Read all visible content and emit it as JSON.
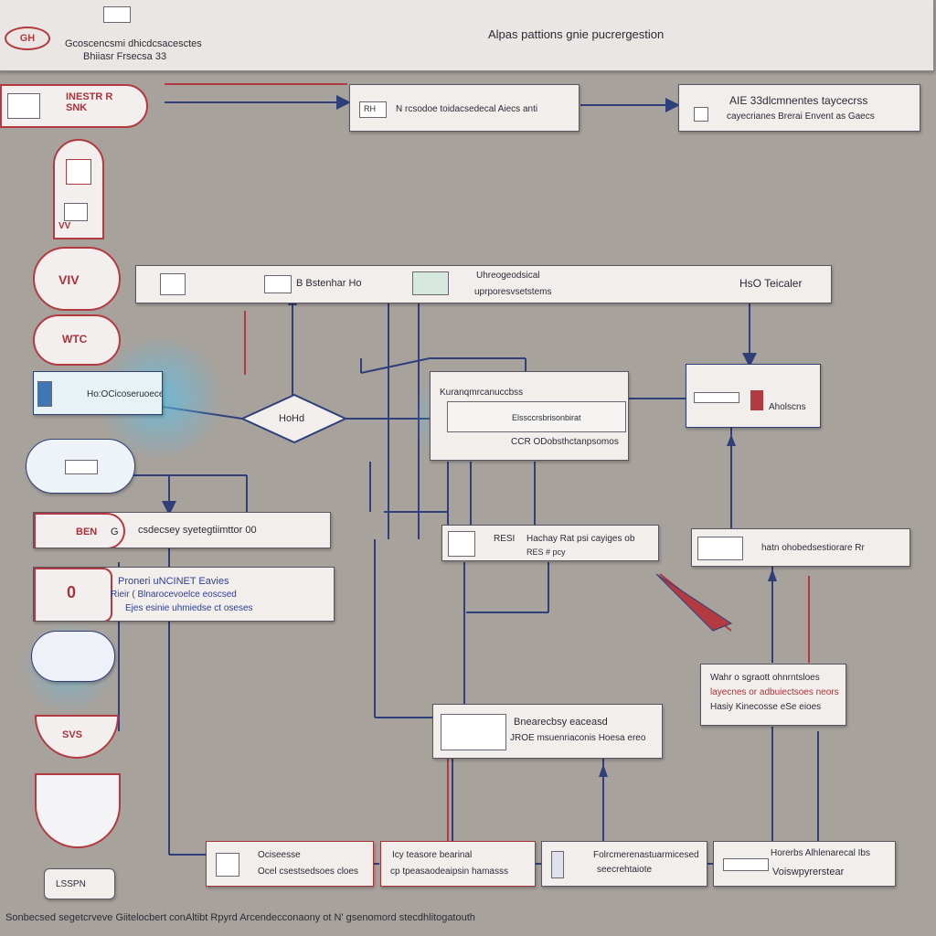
{
  "header": {
    "logo_text": "GH",
    "left_line1": "Gcoscencsmi dhicdcsacesctes",
    "left_line2": "Bhiiasr Frsecsa 33",
    "title": "Alpas pattions gnie pucrergestion"
  },
  "top_row": {
    "red_tag": "INESTR R\nSNK",
    "box_a_chip": "RH",
    "box_a_text": "N rcsodoe toidacsedecal Aiecs anti",
    "box_b_line1": "AIE 33dlcmnentes taycecrss",
    "box_b_line2": "cayecrianes Brerai Envent as Gaecs"
  },
  "bar": {
    "label_a": "B Bstenhar Ho",
    "label_b_line1": "Uhreogeodsical",
    "label_b_line2": "uprporesvsetstems",
    "label_c": "HsO Teicaler"
  },
  "middle": {
    "blue_box": "Ho:OCicoseruoecee",
    "diamond": "HoHd",
    "center_line1": "Kuranqmrcanuccbss",
    "center_line2": "Elssccrsbrisonbirat",
    "center_line3": "CCR ODobsthctanpsomos",
    "right_box": "Aholscns"
  },
  "lower": {
    "box_bill_chip": "BEN",
    "box_bill_g": "G",
    "box_bill_text": "csdecsey  syetegtiimttor 00",
    "box_zero_mark": "0",
    "box_zero_line1": "Proneri uNCINET  Eavies",
    "box_zero_line2": "Rieir (  Blnarocevoelce eoscsed",
    "box_zero_line3": "Ejes  esinie uhmiedse ct oseses",
    "box_c_chip": "RESI",
    "box_c_line1": "Hachay  Rat  psi  cayiges  ob",
    "box_c_line2": "RES  #  pcy",
    "box_d_text": "hatn  ohobedsestiorare  Rr",
    "box_e_line1": "Wahr  o  sgraott  ohnrntsloes",
    "box_e_line2": "layecnes  or  adbuiectsoes neors",
    "box_e_line3": "Hasiy  Kinecosse eSe eioes",
    "box_f_line1": "Bnearecbsy  eaceasd",
    "box_f_line2": "JROE  msuenriaconis  Hoesa ereo"
  },
  "left_column": {
    "shield_1": "VV",
    "shield_2": "VIV",
    "shield_3": "WTC",
    "shield_4": "SVS",
    "tag_bottom": "LSSPN"
  },
  "bottom_row": {
    "b1_line1": "Ociseesse",
    "b1_line2": "Ocel csestsedsoes cloes",
    "b2_line1": "Icy  teasore  bearinal",
    "b2_line2": "cp  tpeasaodeaipsin  hamasss",
    "b3_line1": "Folrcmerenastuarmicesed",
    "b3_line2": "seecrehtaiote",
    "b4_line1": "Horerbs  Alhlenarecal  Ibs",
    "b4_line2": "Voiswpyrerstear"
  },
  "footer": {
    "caption": "Sonbecsed segetcrveve  Giitelocbert  conAltibt  Rpyrd  Arcendecconaony  ot N' gsenomord  stecdhlitogatouth"
  },
  "colors": {
    "background": "#a8a29d",
    "line_blue": "#2f3f7a",
    "line_red": "#b23a40",
    "box_fill": "#f1eeec"
  }
}
